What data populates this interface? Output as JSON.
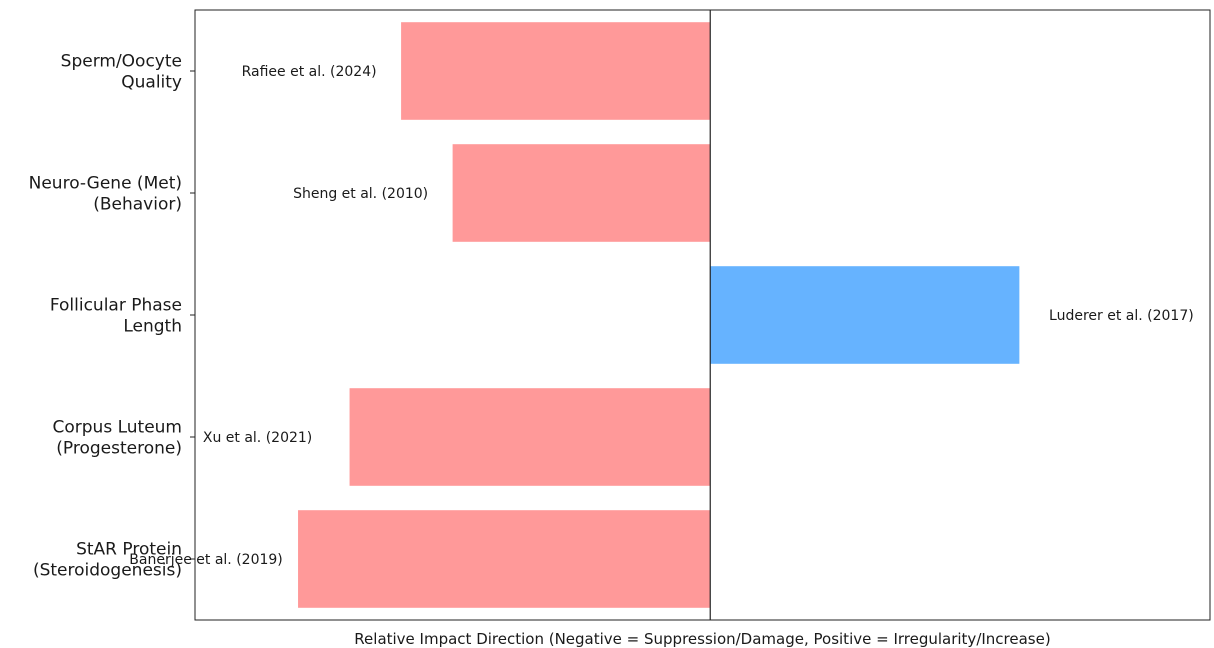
{
  "chart_data": {
    "type": "bar",
    "orientation": "horizontal",
    "title": "",
    "xlabel": "Relative Impact Direction (Negative = Suppression/Damage, Positive = Irregularity/Increase)",
    "ylabel": "",
    "xlim": [
      -1.0,
      0.97
    ],
    "grid": false,
    "categories": [
      [
        "Sperm/Oocyte",
        "Quality"
      ],
      [
        "Neuro-Gene (Met)",
        "(Behavior)"
      ],
      [
        "Follicular Phase",
        "Length"
      ],
      [
        "Corpus Luteum",
        "(Progesterone)"
      ],
      [
        "StAR Protein",
        "(Steroidogenesis)"
      ]
    ],
    "values": [
      -0.6,
      -0.5,
      0.6,
      -0.7,
      -0.8
    ],
    "bar_labels": [
      "Rafiee et al. (2024)",
      "Sheng et al. (2010)",
      "Luderer et al. (2017)",
      "Xu et al. (2021)",
      "Banerjee et al. (2019)"
    ],
    "colors": {
      "negative": "#ff9999",
      "positive": "#66b3ff",
      "axis": "#222222"
    }
  }
}
